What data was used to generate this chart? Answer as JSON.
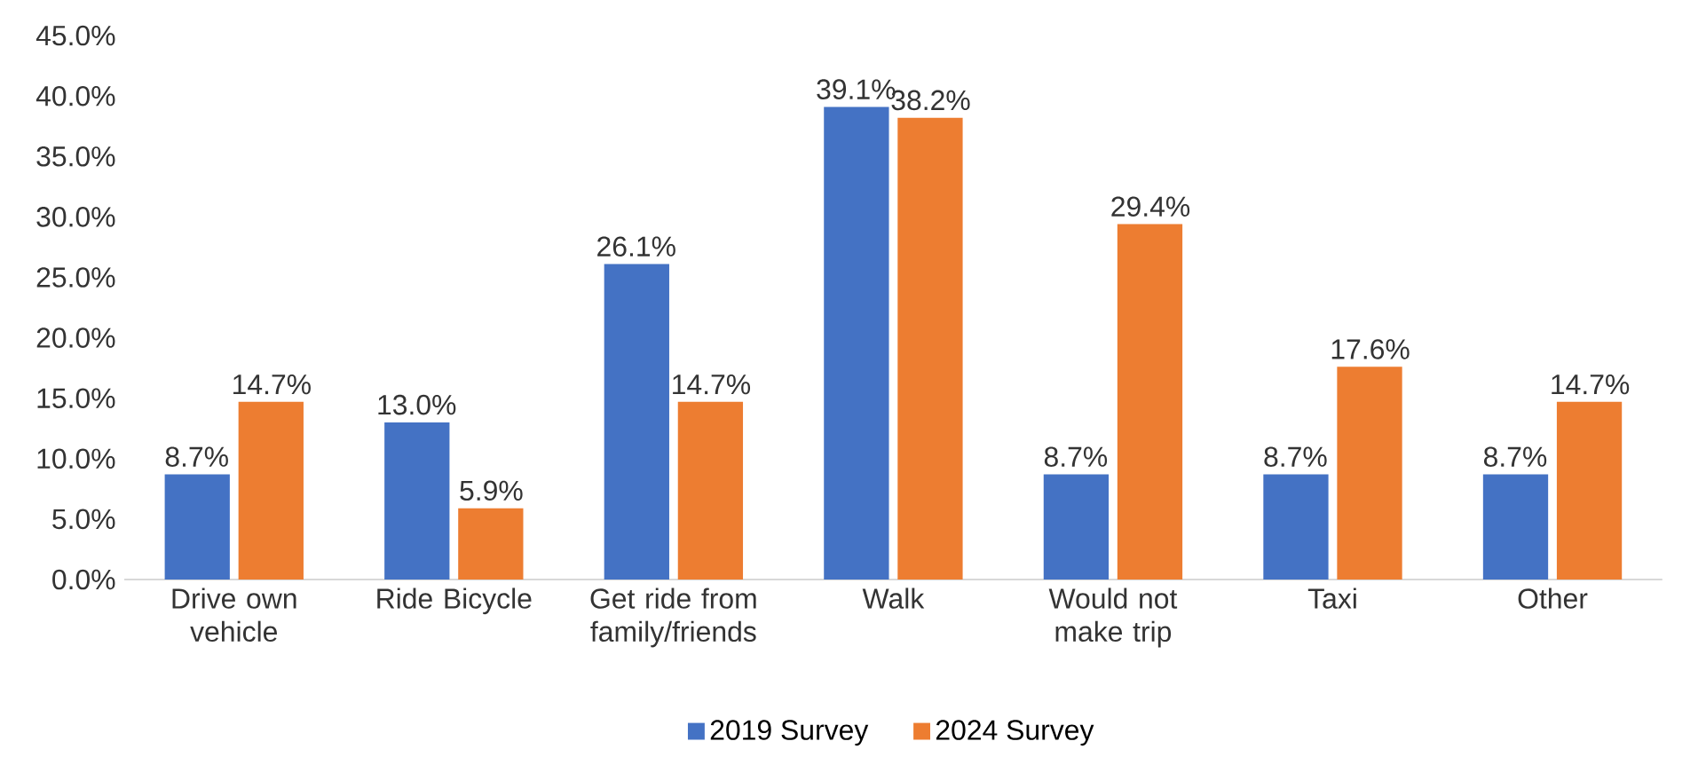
{
  "chart_data": {
    "type": "bar",
    "categories": [
      "Drive own vehicle",
      "Ride Bicycle",
      "Get ride from family/friends",
      "Walk",
      "Would not make trip",
      "Taxi",
      "Other"
    ],
    "series": [
      {
        "name": "2019 Survey",
        "color": "#4472c4",
        "values": [
          8.7,
          13.0,
          26.1,
          39.1,
          8.7,
          8.7,
          8.7
        ],
        "value_labels": [
          "8.7%",
          "13.0%",
          "26.1%",
          "39.1%",
          "8.7%",
          "8.7%",
          "8.7%"
        ]
      },
      {
        "name": "2024 Survey",
        "color": "#ed7d31",
        "values": [
          14.7,
          5.9,
          14.7,
          38.2,
          29.4,
          17.6,
          14.7
        ],
        "value_labels": [
          "14.7%",
          "5.9%",
          "14.7%",
          "38.2%",
          "29.4%",
          "17.6%",
          "14.7%"
        ]
      }
    ],
    "ylim": [
      0,
      45
    ],
    "yticks": [
      {
        "value": 0,
        "label": "0.0%"
      },
      {
        "value": 5,
        "label": "5.0%"
      },
      {
        "value": 10,
        "label": "10.0%"
      },
      {
        "value": 15,
        "label": "15.0%"
      },
      {
        "value": 20,
        "label": "20.0%"
      },
      {
        "value": 25,
        "label": "25.0%"
      },
      {
        "value": 30,
        "label": "30.0%"
      },
      {
        "value": 35,
        "label": "35.0%"
      },
      {
        "value": 40,
        "label": "40.0%"
      },
      {
        "value": 45,
        "label": "45.0%"
      }
    ],
    "legend": "bottom"
  }
}
